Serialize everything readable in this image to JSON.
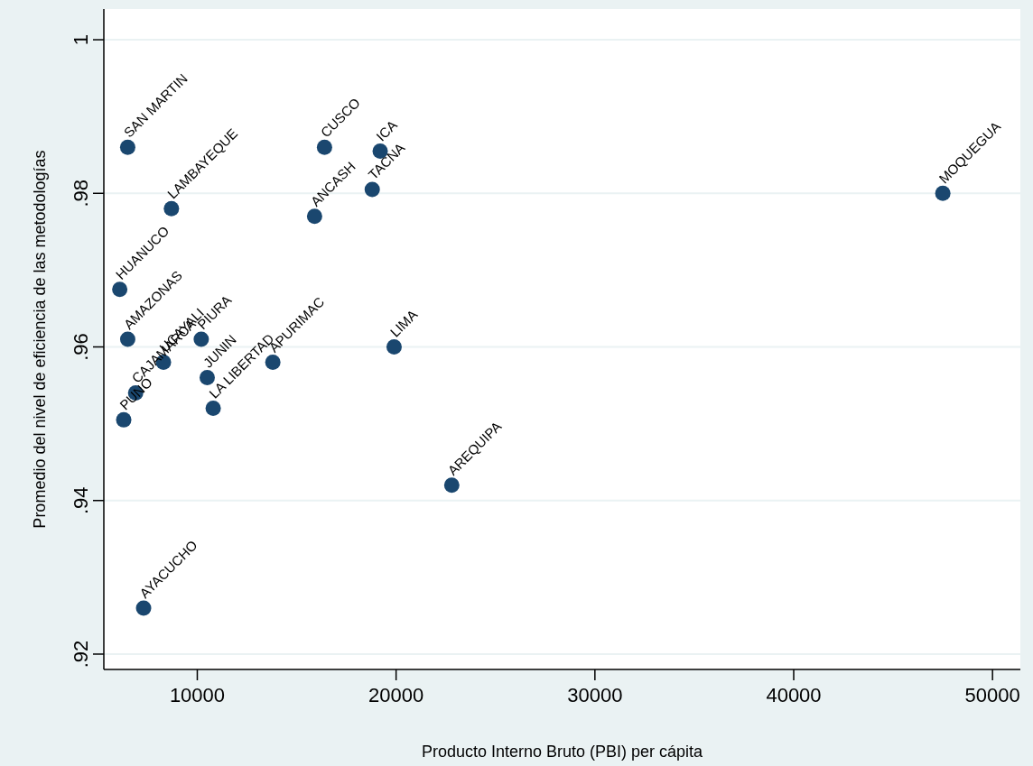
{
  "chart_data": {
    "type": "scatter",
    "xlabel": "Producto Interno Bruto (PBI) per cápita",
    "ylabel": "Promedio del nivel de eficiencia de las metodologías",
    "x": [
      6500,
      8700,
      6100,
      6500,
      8300,
      10200,
      10500,
      6900,
      6300,
      10800,
      13800,
      16400,
      19200,
      15900,
      18800,
      47500,
      19900,
      22800,
      7300
    ],
    "series": [
      {
        "color": "#1a476f",
        "values": [
          0.986,
          0.978,
          0.9675,
          0.961,
          0.958,
          0.961,
          0.956,
          0.954,
          0.9505,
          0.952,
          0.958,
          0.986,
          0.9855,
          0.977,
          0.9805,
          0.98,
          0.96,
          0.942,
          0.926
        ]
      }
    ],
    "annotations": [
      {
        "text": "SAN MARTIN",
        "x": 6500,
        "y": 0.986
      },
      {
        "text": "LAMBAYEQUE",
        "x": 8700,
        "y": 0.978
      },
      {
        "text": "HUANUCO",
        "x": 6100,
        "y": 0.9675
      },
      {
        "text": "AMAZONAS",
        "x": 6500,
        "y": 0.961
      },
      {
        "text": "UCAYALI",
        "x": 8300,
        "y": 0.958
      },
      {
        "text": "PIURA",
        "x": 10200,
        "y": 0.961
      },
      {
        "text": "JUNIN",
        "x": 10500,
        "y": 0.956
      },
      {
        "text": "CAJAMARCA",
        "x": 6900,
        "y": 0.954
      },
      {
        "text": "PUNO",
        "x": 6300,
        "y": 0.9505
      },
      {
        "text": "LA LIBERTAD",
        "x": 10800,
        "y": 0.952
      },
      {
        "text": "APURIMAC",
        "x": 13800,
        "y": 0.958
      },
      {
        "text": "CUSCO",
        "x": 16400,
        "y": 0.986
      },
      {
        "text": "ICA",
        "x": 19200,
        "y": 0.9855
      },
      {
        "text": "ANCASH",
        "x": 15900,
        "y": 0.977
      },
      {
        "text": "TACNA",
        "x": 18800,
        "y": 0.9805
      },
      {
        "text": "MOQUEGUA",
        "x": 47500,
        "y": 0.98
      },
      {
        "text": "LIMA",
        "x": 19900,
        "y": 0.96
      },
      {
        "text": "AREQUIPA",
        "x": 22800,
        "y": 0.942
      },
      {
        "text": "AYACUCHO",
        "x": 7300,
        "y": 0.926
      }
    ],
    "xlim": [
      5300,
      51400
    ],
    "ylim": [
      0.918,
      1.004
    ],
    "xticks": [
      10000,
      20000,
      30000,
      40000,
      50000
    ],
    "yticks": [
      {
        "value": 0.92,
        "label": ".92"
      },
      {
        "value": 0.94,
        "label": ".94"
      },
      {
        "value": 0.96,
        "label": ".96"
      },
      {
        "value": 0.98,
        "label": ".98"
      },
      {
        "value": 1,
        "label": "1"
      }
    ],
    "grid": "y",
    "marker": "circle"
  }
}
